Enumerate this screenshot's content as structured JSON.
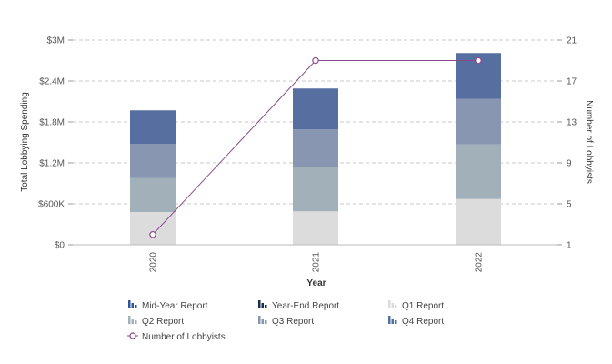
{
  "chart_data": {
    "type": "bar",
    "stacked": true,
    "categories": [
      "2020",
      "2021",
      "2022"
    ],
    "xlabel": "Year",
    "ylabel": "Total Lobbying Spending",
    "y2label": "Number of Lobbyists",
    "ylim": [
      0,
      3000000
    ],
    "yticks": [
      {
        "value": 0,
        "label": "$0"
      },
      {
        "value": 600000,
        "label": "$600K"
      },
      {
        "value": 1200000,
        "label": "$1.2M"
      },
      {
        "value": 1800000,
        "label": "$1.8M"
      },
      {
        "value": 2400000,
        "label": "$2.4M"
      },
      {
        "value": 3000000,
        "label": "$3M"
      }
    ],
    "y2lim": [
      1,
      21
    ],
    "y2ticks": [
      {
        "value": 1,
        "label": "1"
      },
      {
        "value": 5,
        "label": "5"
      },
      {
        "value": 9,
        "label": "9"
      },
      {
        "value": 13,
        "label": "13"
      },
      {
        "value": 17,
        "label": "17"
      },
      {
        "value": 21,
        "label": "21"
      }
    ],
    "grid": true,
    "legend_position": "bottom",
    "series": [
      {
        "name": "Mid-Year Report",
        "color": "#2f5597",
        "values": [
          0,
          0,
          0
        ]
      },
      {
        "name": "Year-End Report",
        "color": "#1f2d4d",
        "values": [
          0,
          0,
          0
        ]
      },
      {
        "name": "Q1 Report",
        "color": "#dcdcdc",
        "values": [
          480000,
          490000,
          670000
        ]
      },
      {
        "name": "Q2 Report",
        "color": "#a2b0ba",
        "values": [
          500000,
          650000,
          800000
        ]
      },
      {
        "name": "Q3 Report",
        "color": "#8896b2",
        "values": [
          500000,
          550000,
          670000
        ]
      },
      {
        "name": "Q4 Report",
        "color": "#566fa0",
        "values": [
          490000,
          600000,
          670000
        ]
      }
    ],
    "line_series": {
      "name": "Number of Lobbyists",
      "color": "#8a4a8e",
      "axis": "right",
      "values": [
        2,
        19,
        19
      ]
    }
  }
}
